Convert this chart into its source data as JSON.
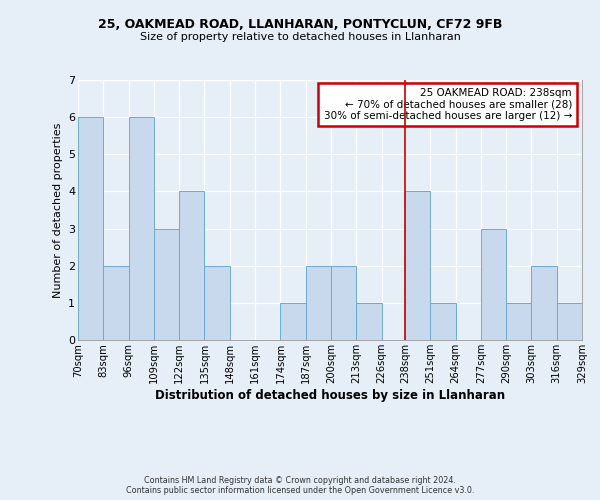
{
  "title_line1": "25, OAKMEAD ROAD, LLANHARAN, PONTYCLUN, CF72 9FB",
  "title_line2": "Size of property relative to detached houses in Llanharan",
  "xlabel": "Distribution of detached houses by size in Llanharan",
  "ylabel": "Number of detached properties",
  "bin_edges": [
    70,
    83,
    96,
    109,
    122,
    135,
    148,
    161,
    174,
    187,
    200,
    213,
    226,
    238,
    251,
    264,
    277,
    290,
    303,
    316,
    329
  ],
  "bar_heights": [
    6,
    2,
    6,
    3,
    4,
    2,
    0,
    0,
    1,
    2,
    2,
    1,
    0,
    4,
    1,
    0,
    3,
    1,
    2,
    1
  ],
  "bar_color": "#c8d9ee",
  "bar_edge_color": "#6aaad4",
  "bg_color": "#e6eef7",
  "grid_color": "#ffffff",
  "vline_x": 238,
  "vline_color": "#cc0000",
  "annotation_title": "25 OAKMEAD ROAD: 238sqm",
  "annotation_line2": "← 70% of detached houses are smaller (28)",
  "annotation_line3": "30% of semi-detached houses are larger (12) →",
  "annotation_box_color": "#ffffff",
  "annotation_border_color": "#cc0000",
  "ylim": [
    0,
    7
  ],
  "yticks": [
    0,
    1,
    2,
    3,
    4,
    5,
    6,
    7
  ],
  "tick_labels": [
    "70sqm",
    "83sqm",
    "96sqm",
    "109sqm",
    "122sqm",
    "135sqm",
    "148sqm",
    "161sqm",
    "174sqm",
    "187sqm",
    "200sqm",
    "213sqm",
    "226sqm",
    "238sqm",
    "251sqm",
    "264sqm",
    "277sqm",
    "290sqm",
    "303sqm",
    "316sqm",
    "329sqm"
  ],
  "footer_line1": "Contains HM Land Registry data © Crown copyright and database right 2024.",
  "footer_line2": "Contains public sector information licensed under the Open Government Licence v3.0."
}
